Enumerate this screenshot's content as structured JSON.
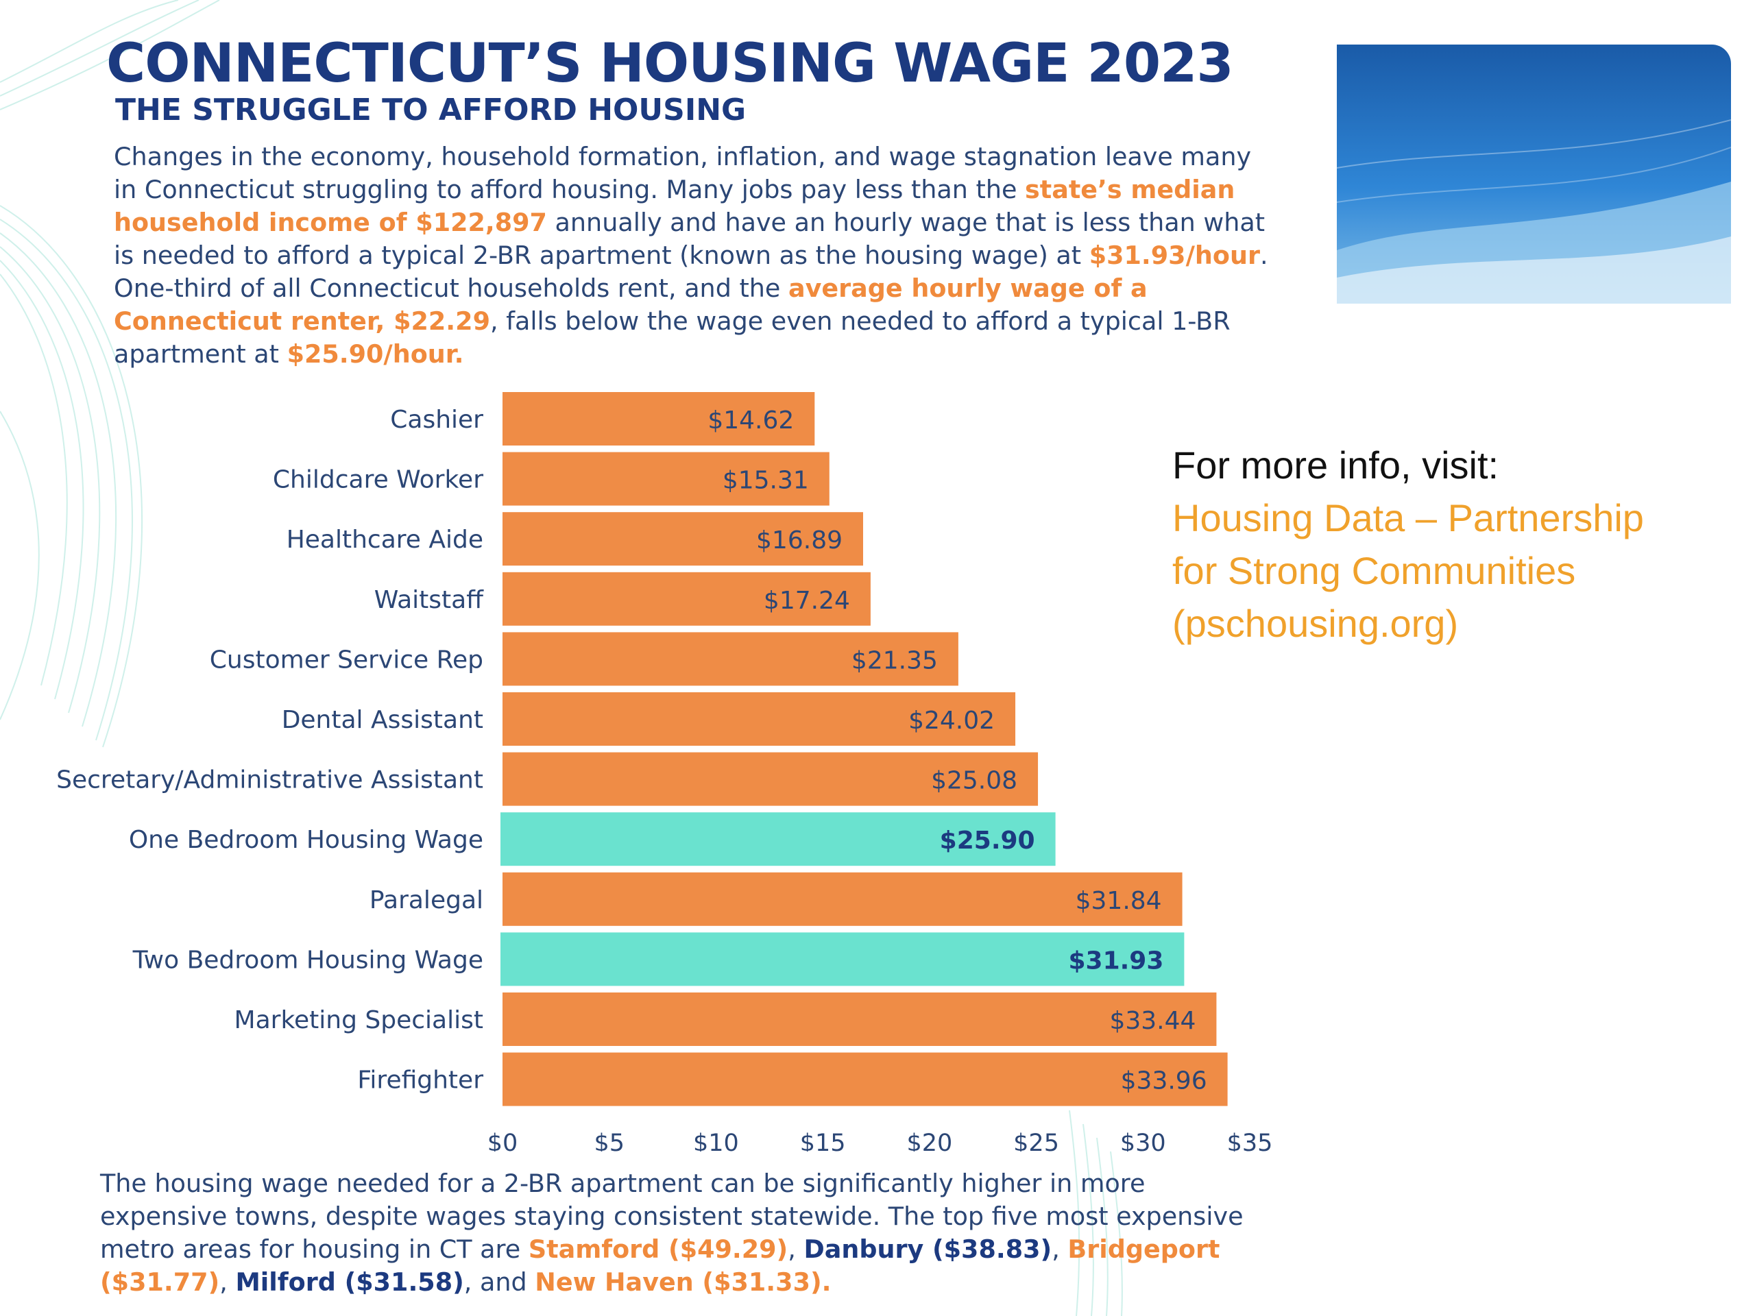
{
  "header": {
    "title": "CONNECTICUT’S HOUSING WAGE 2023",
    "subtitle": "THE STRUGGLE TO AFFORD HOUSING"
  },
  "intro": {
    "t1": "Changes in the economy, household formation, inflation, and wage stagnation leave many in Connecticut struggling to afford housing. Many jobs pay less than the ",
    "h1": "state’s median household income of $122,897",
    "t2": " annually and have an hourly wage that is less than what is needed to afford a typical 2-BR apartment (known as the housing wage) at ",
    "h2": "$31.93/hour",
    "t3": ". One-third of all Connecticut households rent, and the ",
    "h3": "average hourly wage of a Connecticut renter, $22.29",
    "t4": ", falls below the wage even needed to afford a typical 1-BR apartment at ",
    "h4": "$25.90/hour."
  },
  "more_info": {
    "label": "For more info, visit:",
    "link_line1": "Housing Data – Partnership",
    "link_line2": "for Strong Communities",
    "link_line3": "(pschousing.org)"
  },
  "colors": {
    "bar_job": "#ef8c46",
    "bar_housing": "#6ae2cf",
    "title": "#1c3a80",
    "highlight": "#f08a3c",
    "link": "#f0a12b",
    "label_text": "#2b4675"
  },
  "chart_data": {
    "type": "bar",
    "orientation": "horizontal",
    "categories": [
      "Cashier",
      "Childcare Worker",
      "Healthcare Aide",
      "Waitstaff",
      "Customer Service Rep",
      "Dental Assistant",
      "Secretary/Administrative Assistant",
      "One Bedroom Housing Wage",
      "Paralegal",
      "Two Bedroom Housing Wage",
      "Marketing Specialist",
      "Firefighter"
    ],
    "values": [
      14.62,
      15.31,
      16.89,
      17.24,
      21.35,
      24.02,
      25.08,
      25.9,
      31.84,
      31.93,
      33.44,
      33.96
    ],
    "value_labels": [
      "$14.62",
      "$15.31",
      "$16.89",
      "$17.24",
      "$21.35",
      "$24.02",
      "$25.08",
      "$25.90",
      "$31.84",
      "$31.93",
      "$33.44",
      "$33.96"
    ],
    "highlighted": [
      false,
      false,
      false,
      false,
      false,
      false,
      false,
      true,
      false,
      true,
      false,
      false
    ],
    "xlim": [
      0,
      35
    ],
    "xticks": [
      0,
      5,
      10,
      15,
      20,
      25,
      30,
      35
    ],
    "xtick_labels": [
      "$0",
      "$5",
      "$10",
      "$15",
      "$20",
      "$25",
      "$30",
      "$35"
    ],
    "grid": false,
    "legend": "none"
  },
  "footer": {
    "t1": "The housing wage needed for a 2-BR apartment can be significantly higher in more expensive towns, despite wages staying consistent statewide. The top five most expensive metro areas for housing in CT are ",
    "stamford": "Stamford ($49.29)",
    "sep1": ", ",
    "danbury": "Danbury ($38.83)",
    "sep2": ", ",
    "bridgeport": "Bridgeport ($31.77)",
    "sep3": ", ",
    "milford": "Milford ($31.58)",
    "sep4": ", and ",
    "newhaven": "New Haven ($31.33)",
    "end": "."
  }
}
